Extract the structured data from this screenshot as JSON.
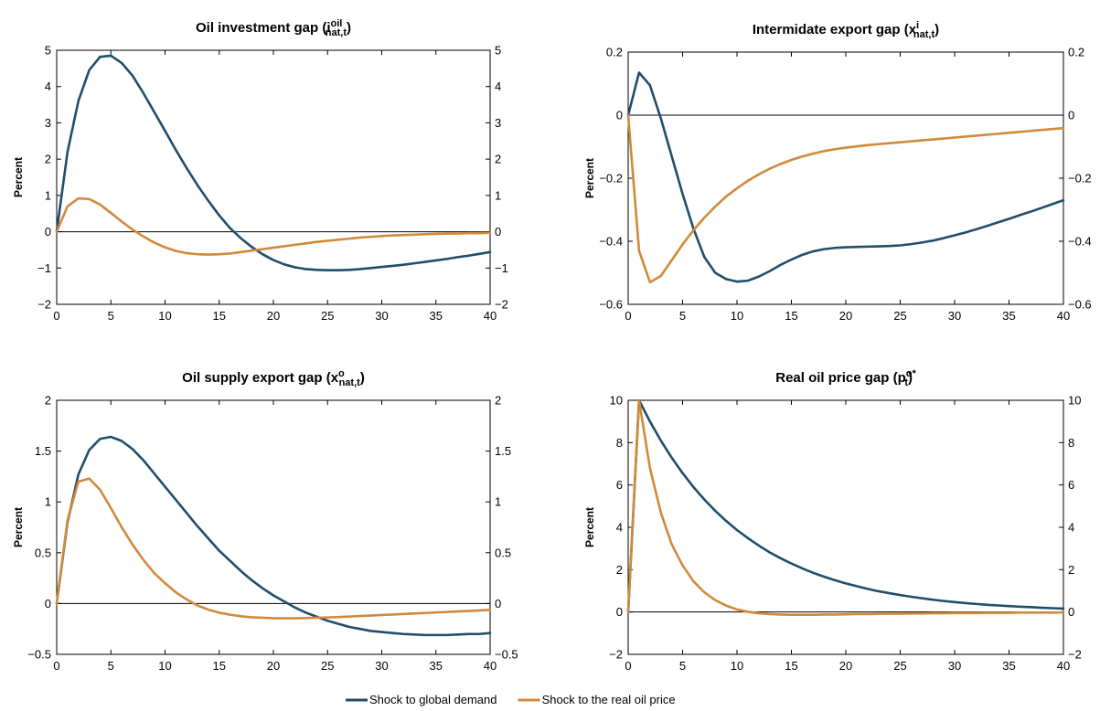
{
  "colors": {
    "series_global_demand": "#1f4e6b",
    "series_oil_price": "#d08a3c",
    "zero_line": "#000000"
  },
  "legend": {
    "placement": "bottom-center",
    "items": [
      {
        "label": "Shock to global demand",
        "color": "#1f4e6b"
      },
      {
        "label": "Shock to the real oil price",
        "color": "#d08a3c"
      }
    ]
  },
  "chart_data": [
    {
      "type": "line",
      "title_text": "Oil investment gap (i",
      "title_sup": "oil",
      "title_sub": "nat,t",
      "title_close": ")",
      "xlabel": "",
      "ylabel": "Percent",
      "xlim": [
        0,
        40
      ],
      "ylim": [
        -2,
        5
      ],
      "xticks": [
        0,
        5,
        10,
        15,
        20,
        25,
        30,
        35,
        40
      ],
      "yticks": [
        -2,
        -1,
        0,
        1,
        2,
        3,
        4,
        5
      ],
      "ytick_labels": [
        "−2",
        "−1",
        "0",
        "1",
        "2",
        "3",
        "4",
        "5"
      ],
      "right_axis_ticks": true,
      "grid": false,
      "x": [
        0,
        1,
        2,
        3,
        4,
        5,
        6,
        7,
        8,
        9,
        10,
        11,
        12,
        13,
        14,
        15,
        16,
        17,
        18,
        19,
        20,
        21,
        22,
        23,
        24,
        25,
        26,
        27,
        28,
        29,
        30,
        31,
        32,
        33,
        34,
        35,
        36,
        37,
        38,
        39,
        40
      ],
      "series": [
        {
          "name": "Shock to global demand",
          "values": [
            0,
            2.2,
            3.6,
            4.45,
            4.82,
            4.85,
            4.65,
            4.3,
            3.82,
            3.3,
            2.78,
            2.25,
            1.75,
            1.28,
            0.85,
            0.45,
            0.1,
            -0.18,
            -0.42,
            -0.62,
            -0.78,
            -0.9,
            -0.98,
            -1.03,
            -1.05,
            -1.06,
            -1.06,
            -1.05,
            -1.03,
            -1.0,
            -0.97,
            -0.94,
            -0.91,
            -0.87,
            -0.83,
            -0.79,
            -0.75,
            -0.7,
            -0.66,
            -0.61,
            -0.56
          ]
        },
        {
          "name": "Shock to the real oil price",
          "values": [
            0,
            0.7,
            0.92,
            0.9,
            0.75,
            0.52,
            0.28,
            0.06,
            -0.13,
            -0.3,
            -0.43,
            -0.53,
            -0.59,
            -0.62,
            -0.63,
            -0.62,
            -0.6,
            -0.56,
            -0.52,
            -0.48,
            -0.44,
            -0.4,
            -0.36,
            -0.32,
            -0.28,
            -0.25,
            -0.22,
            -0.19,
            -0.16,
            -0.14,
            -0.12,
            -0.1,
            -0.09,
            -0.08,
            -0.07,
            -0.06,
            -0.05,
            -0.05,
            -0.04,
            -0.04,
            -0.03
          ]
        }
      ]
    },
    {
      "type": "line",
      "title_text": "Intermidate export gap (x",
      "title_sup": "i",
      "title_sub": "nat,t",
      "title_close": ")",
      "xlabel": "",
      "ylabel": "Percent",
      "xlim": [
        0,
        40
      ],
      "ylim": [
        -0.6,
        0.2
      ],
      "xticks": [
        0,
        5,
        10,
        15,
        20,
        25,
        30,
        35,
        40
      ],
      "yticks": [
        -0.6,
        -0.4,
        -0.2,
        0,
        0.2
      ],
      "ytick_labels": [
        "−0.6",
        "−0.4",
        "−0.2",
        "0",
        "0.2"
      ],
      "right_axis_ticks": true,
      "grid": false,
      "x": [
        0,
        1,
        2,
        3,
        4,
        5,
        6,
        7,
        8,
        9,
        10,
        11,
        12,
        13,
        14,
        15,
        16,
        17,
        18,
        19,
        20,
        21,
        22,
        23,
        24,
        25,
        26,
        27,
        28,
        29,
        30,
        31,
        32,
        33,
        34,
        35,
        36,
        37,
        38,
        39,
        40
      ],
      "series": [
        {
          "name": "Shock to global demand",
          "values": [
            0,
            0.135,
            0.095,
            -0.01,
            -0.13,
            -0.25,
            -0.36,
            -0.45,
            -0.5,
            -0.52,
            -0.528,
            -0.525,
            -0.512,
            -0.495,
            -0.475,
            -0.458,
            -0.443,
            -0.432,
            -0.425,
            -0.421,
            -0.419,
            -0.418,
            -0.417,
            -0.416,
            -0.415,
            -0.413,
            -0.409,
            -0.404,
            -0.398,
            -0.39,
            -0.381,
            -0.372,
            -0.362,
            -0.351,
            -0.34,
            -0.329,
            -0.317,
            -0.306,
            -0.294,
            -0.282,
            -0.27
          ]
        },
        {
          "name": "Shock to the real oil price",
          "values": [
            0,
            -0.43,
            -0.53,
            -0.51,
            -0.46,
            -0.41,
            -0.365,
            -0.325,
            -0.29,
            -0.258,
            -0.232,
            -0.208,
            -0.188,
            -0.17,
            -0.155,
            -0.142,
            -0.131,
            -0.122,
            -0.114,
            -0.108,
            -0.103,
            -0.099,
            -0.095,
            -0.092,
            -0.089,
            -0.086,
            -0.083,
            -0.08,
            -0.077,
            -0.074,
            -0.071,
            -0.068,
            -0.065,
            -0.062,
            -0.059,
            -0.056,
            -0.053,
            -0.05,
            -0.047,
            -0.044,
            -0.041
          ]
        }
      ]
    },
    {
      "type": "line",
      "title_text": "Oil supply export gap (x",
      "title_sup": "o",
      "title_sub": "nat,t",
      "title_close": ")",
      "xlabel": "",
      "ylabel": "Percent",
      "xlim": [
        0,
        40
      ],
      "ylim": [
        -0.5,
        2
      ],
      "xticks": [
        0,
        5,
        10,
        15,
        20,
        25,
        30,
        35,
        40
      ],
      "yticks": [
        -0.5,
        0,
        0.5,
        1,
        1.5,
        2
      ],
      "ytick_labels": [
        "−0.5",
        "0",
        "0.5",
        "1",
        "1.5",
        "2"
      ],
      "right_axis_ticks": true,
      "grid": false,
      "x": [
        0,
        1,
        2,
        3,
        4,
        5,
        6,
        7,
        8,
        9,
        10,
        11,
        12,
        13,
        14,
        15,
        16,
        17,
        18,
        19,
        20,
        21,
        22,
        23,
        24,
        25,
        26,
        27,
        28,
        29,
        30,
        31,
        32,
        33,
        34,
        35,
        36,
        37,
        38,
        39,
        40
      ],
      "series": [
        {
          "name": "Shock to global demand",
          "values": [
            0,
            0.8,
            1.27,
            1.51,
            1.62,
            1.64,
            1.6,
            1.52,
            1.41,
            1.28,
            1.15,
            1.02,
            0.89,
            0.76,
            0.64,
            0.52,
            0.42,
            0.32,
            0.23,
            0.15,
            0.08,
            0.02,
            -0.04,
            -0.09,
            -0.13,
            -0.17,
            -0.2,
            -0.23,
            -0.25,
            -0.27,
            -0.28,
            -0.29,
            -0.3,
            -0.305,
            -0.31,
            -0.31,
            -0.31,
            -0.305,
            -0.3,
            -0.3,
            -0.29
          ]
        },
        {
          "name": "Shock to the real oil price",
          "values": [
            0,
            0.82,
            1.2,
            1.23,
            1.12,
            0.94,
            0.75,
            0.58,
            0.43,
            0.3,
            0.2,
            0.11,
            0.04,
            -0.02,
            -0.06,
            -0.09,
            -0.11,
            -0.125,
            -0.135,
            -0.14,
            -0.145,
            -0.145,
            -0.145,
            -0.143,
            -0.14,
            -0.137,
            -0.133,
            -0.128,
            -0.123,
            -0.118,
            -0.113,
            -0.108,
            -0.103,
            -0.098,
            -0.093,
            -0.088,
            -0.083,
            -0.078,
            -0.073,
            -0.068,
            -0.063
          ]
        }
      ]
    },
    {
      "type": "line",
      "title_text": "Real oil price gap (p",
      "title_sup": "o*",
      "title_sub": "t",
      "title_close": ")",
      "xlabel": "",
      "ylabel": "Percent",
      "xlim": [
        0,
        40
      ],
      "ylim": [
        -2,
        10
      ],
      "xticks": [
        0,
        5,
        10,
        15,
        20,
        25,
        30,
        35,
        40
      ],
      "yticks": [
        -2,
        0,
        2,
        4,
        6,
        8,
        10
      ],
      "ytick_labels": [
        "−2",
        "0",
        "2",
        "4",
        "6",
        "8",
        "10"
      ],
      "right_axis_ticks": true,
      "grid": false,
      "x": [
        0,
        1,
        2,
        3,
        4,
        5,
        6,
        7,
        8,
        9,
        10,
        11,
        12,
        13,
        14,
        15,
        16,
        17,
        18,
        19,
        20,
        21,
        22,
        23,
        24,
        25,
        26,
        27,
        28,
        29,
        30,
        31,
        32,
        33,
        34,
        35,
        36,
        37,
        38,
        39,
        40
      ],
      "series": [
        {
          "name": "Shock to global demand",
          "values": [
            0,
            10,
            9.0,
            8.1,
            7.29,
            6.56,
            5.9,
            5.31,
            4.78,
            4.3,
            3.87,
            3.49,
            3.14,
            2.82,
            2.54,
            2.29,
            2.06,
            1.85,
            1.67,
            1.5,
            1.35,
            1.22,
            1.09,
            0.98,
            0.89,
            0.8,
            0.72,
            0.65,
            0.58,
            0.52,
            0.47,
            0.42,
            0.38,
            0.34,
            0.31,
            0.28,
            0.25,
            0.23,
            0.2,
            0.18,
            0.16
          ]
        },
        {
          "name": "Shock to the real oil price",
          "values": [
            0,
            10,
            6.8,
            4.7,
            3.2,
            2.2,
            1.45,
            0.93,
            0.56,
            0.3,
            0.12,
            0.01,
            -0.06,
            -0.1,
            -0.12,
            -0.13,
            -0.13,
            -0.13,
            -0.12,
            -0.12,
            -0.11,
            -0.1,
            -0.1,
            -0.09,
            -0.08,
            -0.08,
            -0.07,
            -0.07,
            -0.06,
            -0.06,
            -0.05,
            -0.05,
            -0.05,
            -0.04,
            -0.04,
            -0.04,
            -0.03,
            -0.03,
            -0.03,
            -0.03,
            -0.02
          ]
        }
      ]
    }
  ]
}
